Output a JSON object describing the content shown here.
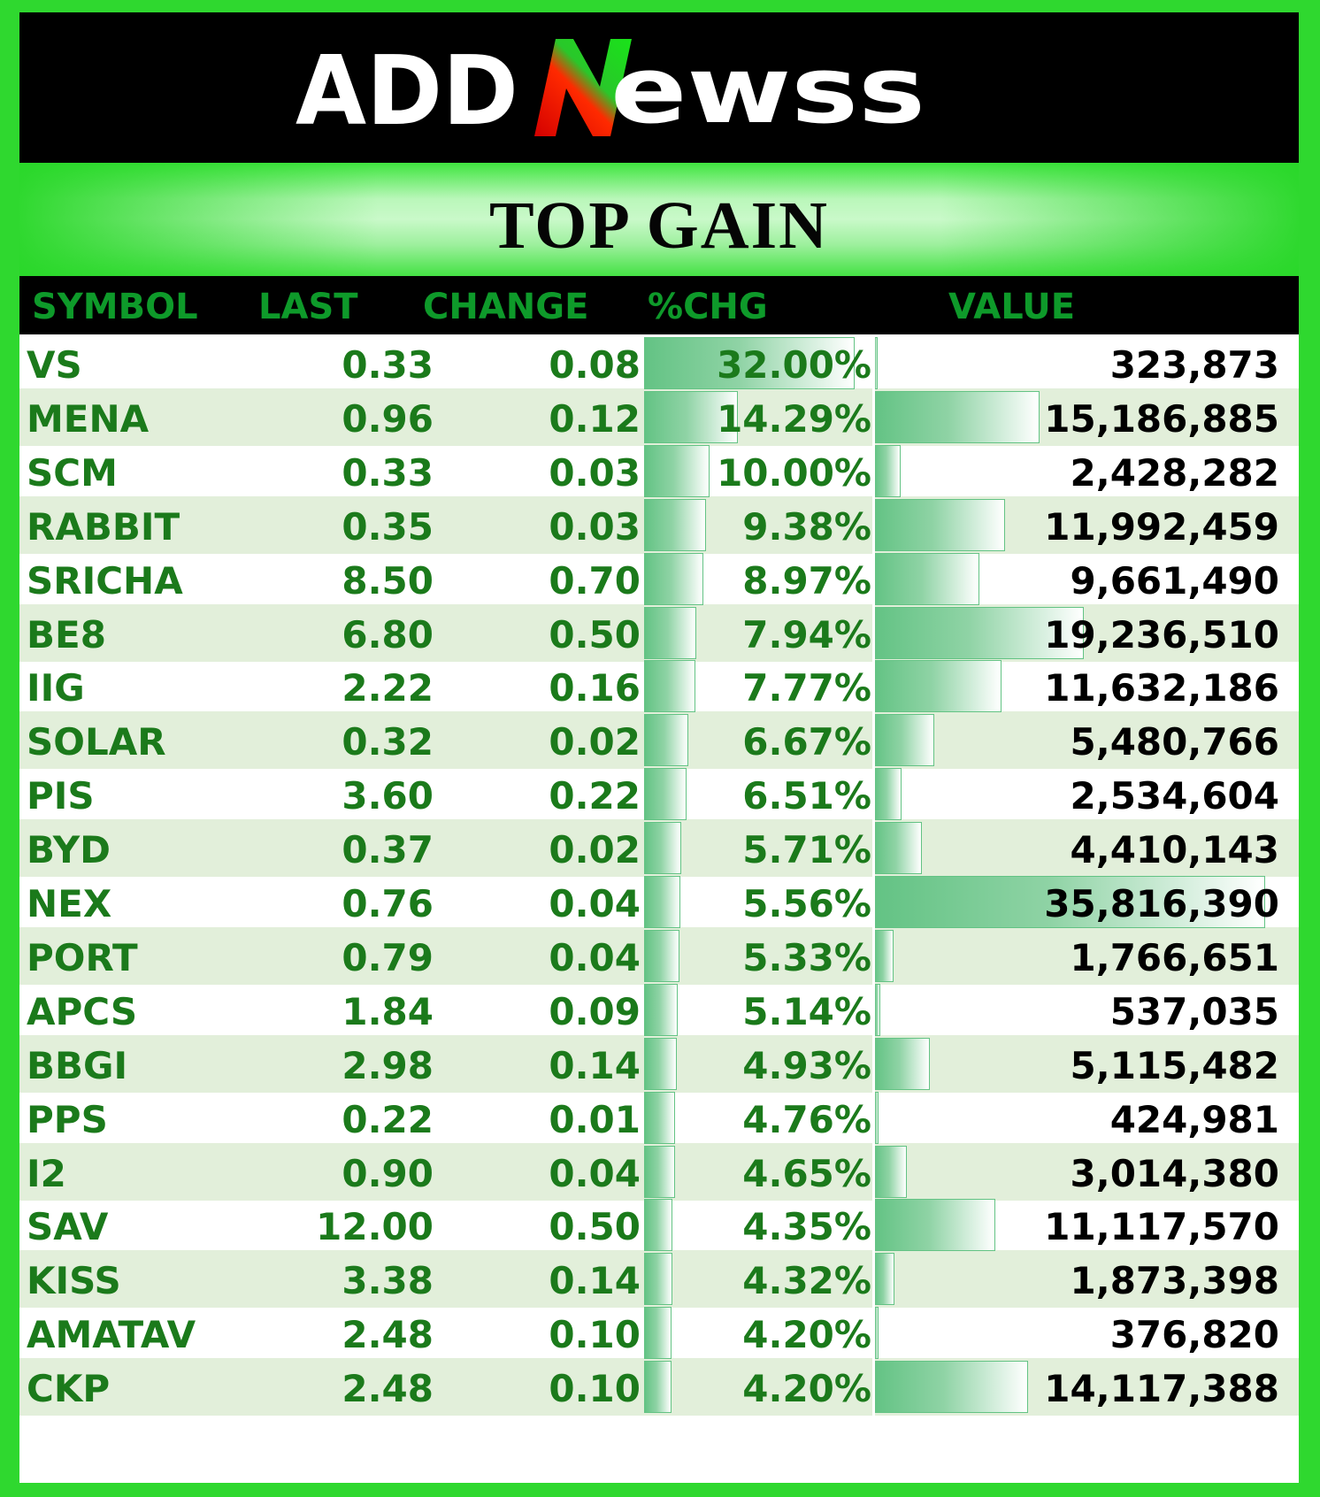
{
  "brand": {
    "logo_text_a": "ADD",
    "logo_text_b": "ewss",
    "colors": {
      "accent_green": "#1fc41f",
      "accent_red": "#e00000",
      "text_green": "#1b7a1b"
    }
  },
  "title": "TOP GAIN",
  "headers": {
    "symbol": "SYMBOL",
    "last": "LAST",
    "change": "CHANGE",
    "pct": "%CHG",
    "value": "VALUE"
  },
  "rows": [
    {
      "symbol": "VS",
      "last": "0.33",
      "change": "0.08",
      "pct": "32.00%",
      "value": "323,873",
      "pct_num": 32.0,
      "value_num": 323873
    },
    {
      "symbol": "MENA",
      "last": "0.96",
      "change": "0.12",
      "pct": "14.29%",
      "value": "15,186,885",
      "pct_num": 14.29,
      "value_num": 15186885
    },
    {
      "symbol": "SCM",
      "last": "0.33",
      "change": "0.03",
      "pct": "10.00%",
      "value": "2,428,282",
      "pct_num": 10.0,
      "value_num": 2428282
    },
    {
      "symbol": "RABBIT",
      "last": "0.35",
      "change": "0.03",
      "pct": "9.38%",
      "value": "11,992,459",
      "pct_num": 9.38,
      "value_num": 11992459
    },
    {
      "symbol": "SRICHA",
      "last": "8.50",
      "change": "0.70",
      "pct": "8.97%",
      "value": "9,661,490",
      "pct_num": 8.97,
      "value_num": 9661490
    },
    {
      "symbol": "BE8",
      "last": "6.80",
      "change": "0.50",
      "pct": "7.94%",
      "value": "19,236,510",
      "pct_num": 7.94,
      "value_num": 19236510
    },
    {
      "symbol": "IIG",
      "last": "2.22",
      "change": "0.16",
      "pct": "7.77%",
      "value": "11,632,186",
      "pct_num": 7.77,
      "value_num": 11632186
    },
    {
      "symbol": "SOLAR",
      "last": "0.32",
      "change": "0.02",
      "pct": "6.67%",
      "value": "5,480,766",
      "pct_num": 6.67,
      "value_num": 5480766
    },
    {
      "symbol": "PIS",
      "last": "3.60",
      "change": "0.22",
      "pct": "6.51%",
      "value": "2,534,604",
      "pct_num": 6.51,
      "value_num": 2534604
    },
    {
      "symbol": "BYD",
      "last": "0.37",
      "change": "0.02",
      "pct": "5.71%",
      "value": "4,410,143",
      "pct_num": 5.71,
      "value_num": 4410143
    },
    {
      "symbol": "NEX",
      "last": "0.76",
      "change": "0.04",
      "pct": "5.56%",
      "value": "35,816,390",
      "pct_num": 5.56,
      "value_num": 35816390
    },
    {
      "symbol": "PORT",
      "last": "0.79",
      "change": "0.04",
      "pct": "5.33%",
      "value": "1,766,651",
      "pct_num": 5.33,
      "value_num": 1766651
    },
    {
      "symbol": "APCS",
      "last": "1.84",
      "change": "0.09",
      "pct": "5.14%",
      "value": "537,035",
      "pct_num": 5.14,
      "value_num": 537035
    },
    {
      "symbol": "BBGI",
      "last": "2.98",
      "change": "0.14",
      "pct": "4.93%",
      "value": "5,115,482",
      "pct_num": 4.93,
      "value_num": 5115482
    },
    {
      "symbol": "PPS",
      "last": "0.22",
      "change": "0.01",
      "pct": "4.76%",
      "value": "424,981",
      "pct_num": 4.76,
      "value_num": 424981
    },
    {
      "symbol": "I2",
      "last": "0.90",
      "change": "0.04",
      "pct": "4.65%",
      "value": "3,014,380",
      "pct_num": 4.65,
      "value_num": 3014380
    },
    {
      "symbol": "SAV",
      "last": "12.00",
      "change": "0.50",
      "pct": "4.35%",
      "value": "11,117,570",
      "pct_num": 4.35,
      "value_num": 11117570
    },
    {
      "symbol": "KISS",
      "last": "3.38",
      "change": "0.14",
      "pct": "4.32%",
      "value": "1,873,398",
      "pct_num": 4.32,
      "value_num": 1873398
    },
    {
      "symbol": "AMATAV",
      "last": "2.48",
      "change": "0.10",
      "pct": "4.20%",
      "value": "376,820",
      "pct_num": 4.2,
      "value_num": 376820
    },
    {
      "symbol": "CKP",
      "last": "2.48",
      "change": "0.10",
      "pct": "4.20%",
      "value": "14,117,388",
      "pct_num": 4.2,
      "value_num": 14117388
    }
  ]
}
